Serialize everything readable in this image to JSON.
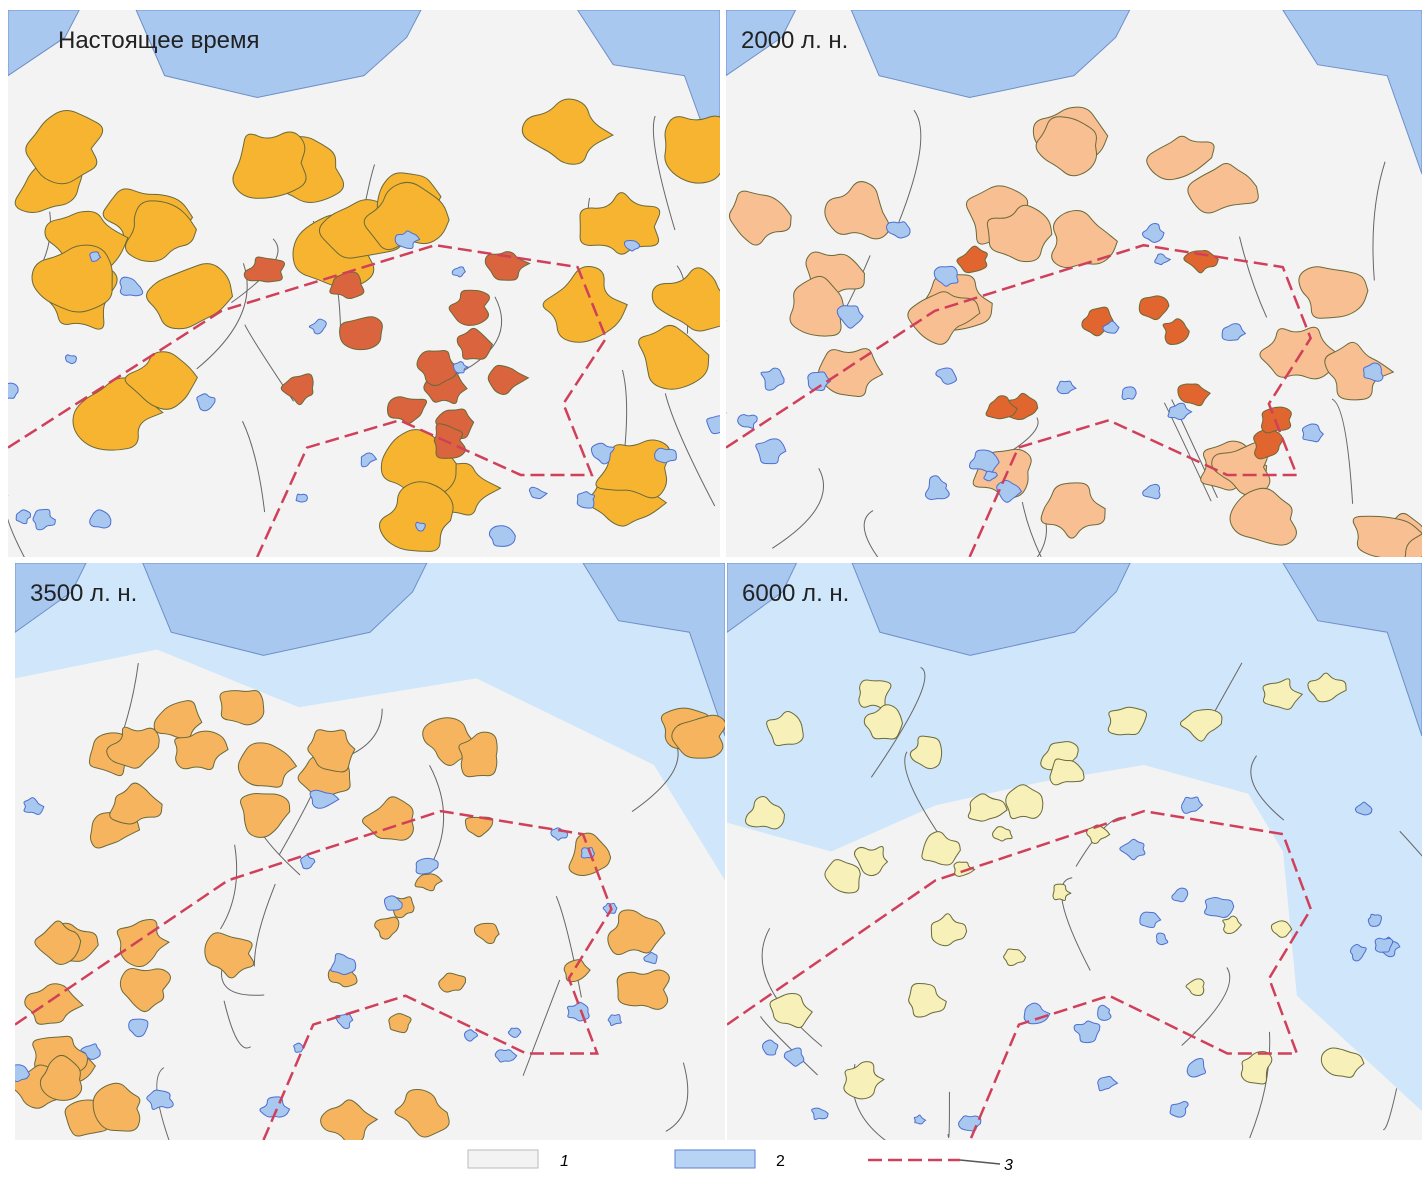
{
  "panels": [
    {
      "title": "Настоящее время"
    },
    {
      "title": "2000 л. н."
    },
    {
      "title": "3500 л. н."
    },
    {
      "title": "6000 л. н."
    }
  ],
  "legend": [
    {
      "label": "1"
    },
    {
      "label": "2"
    },
    {
      "label": "3"
    }
  ]
}
